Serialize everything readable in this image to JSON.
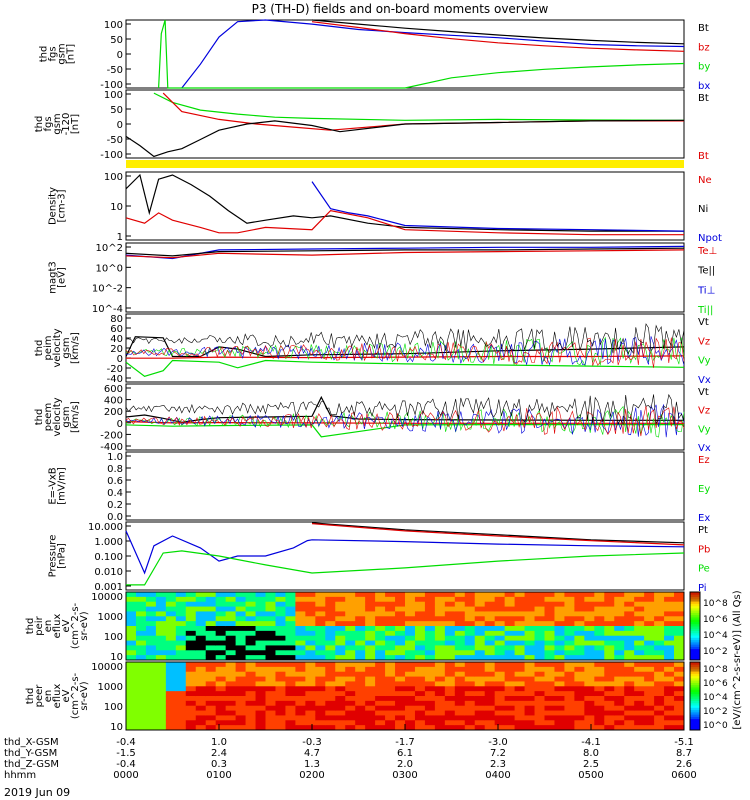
{
  "title": "P3 (TH-D) fields and on-board moments overview",
  "date_label": "2019 Jun 09",
  "colors": {
    "black": "#000000",
    "red": "#e00000",
    "green": "#00dd00",
    "blue": "#0000dd",
    "yellow": "#ffee00"
  },
  "chart_data": [
    {
      "id": "fgs-gsm",
      "type": "line",
      "ylabel_lines": [
        "thd",
        "fgs",
        "gsm",
        "[nT]"
      ],
      "yticks": [
        "100",
        "50",
        "0",
        "-50",
        "-100"
      ],
      "ylim": [
        -100,
        100
      ],
      "legend": [
        {
          "label": "Bt",
          "color": "#000000"
        },
        {
          "label": "bz",
          "color": "#e00000"
        },
        {
          "label": "by",
          "color": "#00dd00"
        },
        {
          "label": "bx",
          "color": "#0000dd"
        }
      ],
      "series": [
        {
          "color": "#000000",
          "x": [
            2.0,
            2.5,
            3.0,
            3.5,
            4.0,
            4.5,
            5.0,
            5.5,
            6.0
          ],
          "y": [
            100,
            88,
            76,
            66,
            56,
            47,
            40,
            34,
            30
          ]
        },
        {
          "color": "#0000dd",
          "x": [
            0.6,
            0.8,
            1.0,
            1.2,
            1.5,
            2.0,
            2.5,
            3.0,
            3.5,
            4.0,
            4.5,
            5.0,
            5.5,
            6.0
          ],
          "y": [
            -100,
            -30,
            50,
            95,
            100,
            88,
            72,
            63,
            55,
            48,
            38,
            28,
            24,
            22
          ]
        },
        {
          "color": "#e00000",
          "x": [
            2.0,
            2.5,
            3.0,
            3.5,
            4.0,
            4.5,
            5.0,
            5.5,
            6.0
          ],
          "y": [
            95,
            78,
            60,
            45,
            33,
            24,
            17,
            12,
            8
          ]
        },
        {
          "color": "#00dd00",
          "x": [
            0.35,
            0.38,
            0.42,
            0.45,
            3.0,
            3.5,
            4.0,
            4.5,
            5.0,
            5.5,
            6.0
          ],
          "y": [
            -100,
            60,
            100,
            -100,
            -100,
            -70,
            -55,
            -45,
            -38,
            -32,
            -28
          ]
        }
      ]
    },
    {
      "id": "fgs-gsm-120",
      "type": "line",
      "ylabel_lines": [
        "thd",
        "fgs",
        "gsm",
        "-120",
        "[nT]"
      ],
      "yticks": [
        "100",
        "50",
        "0",
        "-50",
        "-100"
      ],
      "ylim": [
        -120,
        100
      ],
      "legend": [
        {
          "label": "Bt",
          "color": "#000000"
        },
        {
          "label": "Bt",
          "color": "#e00000"
        }
      ],
      "series": [
        {
          "color": "#00dd00",
          "x": [
            0.3,
            0.5,
            0.8,
            1.2,
            1.6,
            2.0,
            3.0,
            4.0,
            5.0,
            6.0
          ],
          "y": [
            90,
            60,
            35,
            22,
            12,
            8,
            2,
            5,
            3,
            2
          ]
        },
        {
          "color": "#e00000",
          "x": [
            0.4,
            0.6,
            1.0,
            1.4,
            1.8,
            2.2,
            3.0,
            4.0,
            5.0,
            6.0
          ],
          "y": [
            90,
            30,
            5,
            -10,
            -20,
            -30,
            -10,
            -5,
            0,
            0
          ]
        },
        {
          "color": "#000000",
          "x": [
            0.0,
            0.15,
            0.3,
            0.45,
            0.6,
            0.8,
            1.0,
            1.3,
            1.6,
            2.0,
            2.3,
            3.0,
            4.0,
            5.0,
            6.0
          ],
          "y": [
            -50,
            -80,
            -115,
            -100,
            -90,
            -60,
            -30,
            -10,
            0,
            -15,
            -35,
            -10,
            -5,
            0,
            2
          ]
        }
      ]
    },
    {
      "id": "density",
      "type": "line",
      "ylabel_lines": [
        "Density",
        "[cm-3]"
      ],
      "yticks": [
        "100",
        "10",
        "1"
      ],
      "log": true,
      "ylim": [
        0.3,
        200
      ],
      "legend": [
        {
          "label": "Ne",
          "color": "#e00000"
        },
        {
          "label": "Ni",
          "color": "#000000"
        },
        {
          "label": "Npot",
          "color": "#0000dd"
        }
      ],
      "series": [
        {
          "color": "#000000",
          "x": [
            0.0,
            0.15,
            0.25,
            0.35,
            0.5,
            0.7,
            0.9,
            1.1,
            1.3,
            1.5,
            1.8,
            2.0,
            2.2,
            2.6,
            3.0,
            4.0,
            5.0,
            6.0
          ],
          "y": [
            40,
            150,
            4,
            100,
            150,
            60,
            20,
            5,
            1.5,
            2,
            3,
            2.5,
            3,
            1.5,
            1,
            0.8,
            0.7,
            0.7
          ]
        },
        {
          "color": "#e00000",
          "x": [
            0.0,
            0.2,
            0.35,
            0.5,
            0.8,
            1.0,
            1.2,
            1.5,
            2.0,
            2.2,
            2.6,
            3.0,
            4.0,
            5.0,
            6.0
          ],
          "y": [
            2.5,
            1.5,
            4,
            2.0,
            1.0,
            0.6,
            0.6,
            1.0,
            0.8,
            5,
            2.5,
            0.8,
            0.6,
            0.5,
            0.5
          ]
        },
        {
          "color": "#0000dd",
          "x": [
            2.0,
            2.2,
            2.4,
            2.6,
            3.0,
            4.0,
            5.0,
            6.0
          ],
          "y": [
            80,
            6,
            4,
            3,
            1.2,
            0.9,
            0.8,
            0.7
          ]
        }
      ]
    },
    {
      "id": "temperature",
      "type": "line",
      "ylabel_lines": [
        "magt3",
        "[eV]"
      ],
      "yticks": [
        "10^2",
        "10^0",
        "10^-2",
        "10^-4"
      ],
      "ylim": [
        -5,
        3
      ],
      "legend": [
        {
          "label": "Te⊥",
          "color": "#e00000"
        },
        {
          "label": "Te||",
          "color": "#000000"
        },
        {
          "label": "Ti⊥",
          "color": "#0000dd"
        },
        {
          "label": "Ti||",
          "color": "#00dd00"
        }
      ],
      "series": [
        {
          "color": "#0000dd",
          "x": [
            0.0,
            0.5,
            1.0,
            2.0,
            3.0,
            4.0,
            5.0,
            6.0
          ],
          "y": [
            1.6,
            1.2,
            2.2,
            2.3,
            2.4,
            2.5,
            2.5,
            2.6
          ]
        },
        {
          "color": "#000000",
          "x": [
            0.0,
            0.5,
            1.0,
            2.0,
            3.0,
            4.0,
            5.0,
            6.0
          ],
          "y": [
            1.8,
            1.5,
            2.0,
            2.1,
            2.2,
            2.2,
            2.3,
            2.4
          ]
        },
        {
          "color": "#e00000",
          "x": [
            0.0,
            0.5,
            1.0,
            2.0,
            3.0,
            4.0,
            5.0,
            6.0
          ],
          "y": [
            1.5,
            1.3,
            1.8,
            1.6,
            1.9,
            2.0,
            2.1,
            2.2
          ]
        }
      ]
    },
    {
      "id": "peim-velocity",
      "type": "line",
      "ylabel_lines": [
        "thd",
        "peim",
        "velocity",
        "gsm",
        "[km/s]"
      ],
      "yticks": [
        "80",
        "60",
        "40",
        "20",
        "0",
        "-20",
        "-40"
      ],
      "ylim": [
        -40,
        80
      ],
      "legend": [
        {
          "label": "Vt",
          "color": "#000000"
        },
        {
          "label": "Vz",
          "color": "#e00000"
        },
        {
          "label": "Vy",
          "color": "#00dd00"
        },
        {
          "label": "Vx",
          "color": "#0000dd"
        }
      ],
      "series": [
        {
          "color": "#000000",
          "x": [
            0.0,
            0.1,
            0.4,
            0.5,
            0.8,
            1.0,
            1.2,
            1.5,
            2.0,
            3.0,
            4.0,
            5.0,
            6.0
          ],
          "y": [
            5,
            40,
            38,
            5,
            5,
            22,
            18,
            5,
            8,
            10,
            15,
            18,
            22
          ]
        },
        {
          "color": "#00dd00",
          "x": [
            0.0,
            0.2,
            0.4,
            0.5,
            1.0,
            1.2,
            1.5,
            2.0,
            3.0,
            4.0,
            5.0,
            6.0
          ],
          "y": [
            -5,
            -30,
            -20,
            -2,
            -5,
            -15,
            -2,
            -5,
            -8,
            -10,
            -12,
            -14
          ]
        },
        {
          "color": "#e00000",
          "x": [
            0.0,
            0.5,
            1.0,
            2.0,
            3.0,
            4.0,
            5.0,
            6.0
          ],
          "y": [
            2,
            2,
            4,
            3,
            4,
            5,
            5,
            6
          ]
        }
      ]
    },
    {
      "id": "peem-velocity",
      "type": "line",
      "ylabel_lines": [
        "thd",
        "peem",
        "velocity",
        "gsm",
        "[km/s]"
      ],
      "yticks": [
        "600",
        "400",
        "200",
        "0",
        "-200",
        "-400"
      ],
      "ylim": [
        -400,
        600
      ],
      "legend": [
        {
          "label": "Vt",
          "color": "#000000"
        },
        {
          "label": "Vz",
          "color": "#e00000"
        },
        {
          "label": "Vy",
          "color": "#00dd00"
        },
        {
          "label": "Vx",
          "color": "#0000dd"
        }
      ],
      "series": [
        {
          "color": "#000000",
          "x": [
            0.0,
            0.2,
            0.4,
            0.6,
            0.8,
            1.0,
            1.5,
            2.0,
            2.1,
            2.2,
            2.5,
            3.0,
            4.0,
            5.0,
            6.0
          ],
          "y": [
            100,
            130,
            80,
            20,
            60,
            90,
            100,
            110,
            400,
            120,
            70,
            60,
            55,
            50,
            50
          ]
        },
        {
          "color": "#e00000",
          "x": [
            0.0,
            0.5,
            1.0,
            2.0,
            3.0,
            4.0,
            5.0,
            6.0
          ],
          "y": [
            30,
            10,
            15,
            10,
            5,
            5,
            5,
            5
          ]
        },
        {
          "color": "#00dd00",
          "x": [
            0.0,
            0.5,
            1.0,
            2.0,
            2.1,
            3.0,
            4.0,
            5.0,
            6.0
          ],
          "y": [
            -20,
            -40,
            -30,
            -20,
            -200,
            -20,
            -15,
            -15,
            -15
          ]
        }
      ]
    },
    {
      "id": "efield",
      "type": "line",
      "ylabel_lines": [
        "E=-VxB",
        "[mV/m]"
      ],
      "yticks": [
        "1.0",
        "0.8",
        "0.6",
        "0.4",
        "0.2",
        "0.0"
      ],
      "ylim": [
        0,
        1
      ],
      "legend": [
        {
          "label": "Ez",
          "color": "#e00000"
        },
        {
          "label": "Ey",
          "color": "#00dd00"
        },
        {
          "label": "Ex",
          "color": "#0000dd"
        }
      ],
      "series": []
    },
    {
      "id": "pressure",
      "type": "line",
      "ylabel_lines": [
        "Pressure",
        "[nPa]"
      ],
      "yticks": [
        "10.000",
        "1.000",
        "0.100",
        "0.010",
        "0.001"
      ],
      "log": true,
      "ylim": [
        0.001,
        10
      ],
      "legend": [
        {
          "label": "Pt",
          "color": "#000000"
        },
        {
          "label": "Pb",
          "color": "#e00000"
        },
        {
          "label": "Pe",
          "color": "#00dd00"
        },
        {
          "label": "Pi",
          "color": "#0000dd"
        }
      ],
      "series": [
        {
          "color": "#000000",
          "x": [
            2.0,
            3.0,
            4.0,
            5.0,
            6.0
          ],
          "y": [
            9,
            3.5,
            1.8,
            0.9,
            0.6
          ]
        },
        {
          "color": "#e00000",
          "x": [
            2.0,
            3.0,
            4.0,
            5.0,
            6.0
          ],
          "y": [
            8,
            3,
            1.5,
            0.8,
            0.45
          ]
        },
        {
          "color": "#0000dd",
          "x": [
            0.0,
            0.2,
            0.3,
            0.5,
            0.8,
            1.0,
            1.2,
            1.5,
            1.8,
            1.95,
            2.0,
            3.0,
            4.0,
            5.0,
            6.0
          ],
          "y": [
            3,
            0.01,
            0.4,
            1.5,
            0.3,
            0.05,
            0.1,
            0.1,
            0.3,
            0.8,
            0.9,
            0.7,
            0.5,
            0.4,
            0.35
          ]
        },
        {
          "color": "#00dd00",
          "x": [
            0.0,
            0.2,
            0.4,
            0.6,
            1.0,
            1.5,
            2.0,
            3.0,
            4.0,
            5.0,
            6.0
          ],
          "y": [
            0.002,
            0.002,
            0.15,
            0.2,
            0.1,
            0.03,
            0.01,
            0.02,
            0.05,
            0.1,
            0.15
          ]
        }
      ]
    },
    {
      "id": "peir-spectrogram",
      "type": "heatmap",
      "ylabel_lines": [
        "thd",
        "peir",
        "en",
        "eflux",
        "eV",
        "(cm^2-s-",
        "sr-eV)"
      ],
      "yticks": [
        "10000",
        "1000",
        "100",
        "10"
      ]
    },
    {
      "id": "peer-spectrogram",
      "type": "heatmap",
      "ylabel_lines": [
        "thd",
        "peer",
        "en",
        "eflux",
        "eV",
        "(cm^2-s-",
        "sr-eV)"
      ],
      "yticks": [
        "10000",
        "1000",
        "100",
        "10"
      ]
    }
  ],
  "colorbar": {
    "label": "[eV/(cm^2-s-sr-eV)] (All Qs)",
    "ticks_top": [
      "10^8",
      "10^6",
      "10^4",
      "10^2"
    ],
    "ticks_bottom": [
      "10^8",
      "10^6",
      "10^4",
      "10^2",
      "10^0"
    ]
  },
  "xaxis": {
    "rows": [
      {
        "label": "thd_X-GSM",
        "values": [
          "-0.4",
          "1.0",
          "-0.3",
          "-1.7",
          "-3.0",
          "-4.1",
          "-5.1"
        ]
      },
      {
        "label": "thd_Y-GSM",
        "values": [
          "-1.5",
          "2.4",
          "4.7",
          "6.1",
          "7.2",
          "8.0",
          "8.7"
        ]
      },
      {
        "label": "thd_Z-GSM",
        "values": [
          "-0.4",
          "0.3",
          "1.3",
          "2.0",
          "2.3",
          "2.5",
          "2.6"
        ]
      },
      {
        "label": "hhmm",
        "values": [
          "0000",
          "0100",
          "0200",
          "0300",
          "0400",
          "0500",
          "0600"
        ]
      }
    ]
  }
}
